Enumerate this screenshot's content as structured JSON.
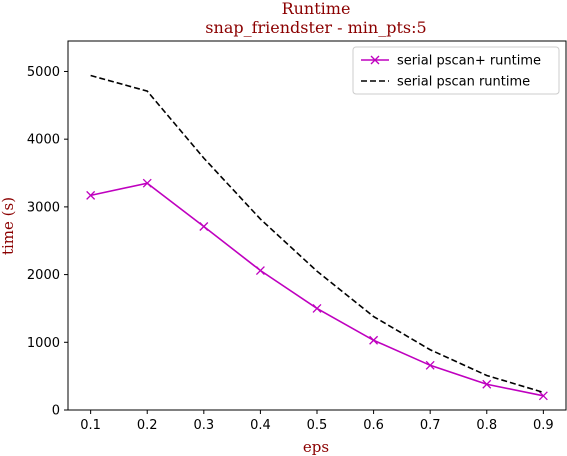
{
  "chart_data": {
    "type": "line",
    "title": "Runtime",
    "subtitle": "snap_friendster - min_pts:5",
    "xlabel": "eps",
    "ylabel": "time (s)",
    "x": [
      0.1,
      0.2,
      0.3,
      0.4,
      0.5,
      0.6,
      0.7,
      0.8,
      0.9
    ],
    "xticks": [
      "0.1",
      "0.2",
      "0.3",
      "0.4",
      "0.5",
      "0.6",
      "0.7",
      "0.8",
      "0.9"
    ],
    "yticks": [
      "0",
      "1000",
      "2000",
      "3000",
      "4000",
      "5000"
    ],
    "xlim": [
      0.06,
      0.94
    ],
    "ylim": [
      0,
      5450
    ],
    "grid": false,
    "legend_position": "top-right",
    "series": [
      {
        "name": "serial pscan+ runtime",
        "values": [
          3170,
          3350,
          2710,
          2060,
          1500,
          1030,
          660,
          380,
          210
        ],
        "color": "#bf00bf",
        "line_style": "solid",
        "marker": "x"
      },
      {
        "name": "serial pscan runtime",
        "values": [
          4940,
          4710,
          3720,
          2820,
          2050,
          1380,
          890,
          510,
          260
        ],
        "color": "#000000",
        "line_style": "dashed",
        "marker": "none"
      }
    ]
  },
  "colors": {
    "title": "#8b0000",
    "axis_label": "#8b0000"
  }
}
